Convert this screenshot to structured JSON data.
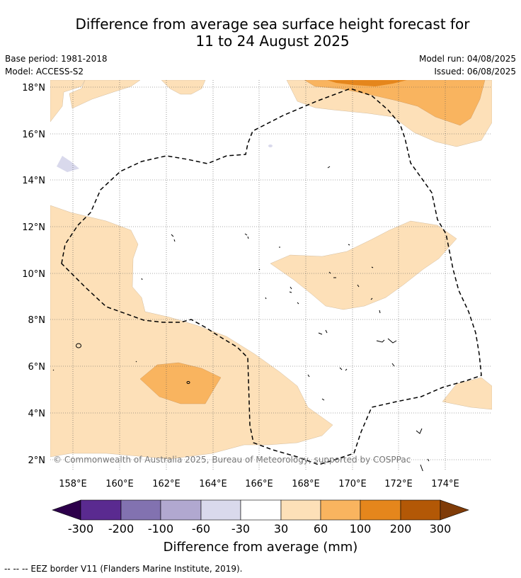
{
  "title": {
    "line1": "Difference from average sea surface height forecast for",
    "line2": "11 to 24 August 2025"
  },
  "meta_left": {
    "base_period": "Base period: 1981-2018",
    "model": "Model: ACCESS-S2"
  },
  "meta_right": {
    "model_run": "Model run: 04/08/2025",
    "issued": "Issued: 06/08/2025"
  },
  "map": {
    "lat_labels": [
      "18°N",
      "16°N",
      "14°N",
      "12°N",
      "10°N",
      "8°N",
      "6°N",
      "4°N",
      "2°N"
    ],
    "lon_labels": [
      "158°E",
      "160°E",
      "162°E",
      "164°E",
      "166°E",
      "168°E",
      "170°E",
      "172°E",
      "174°E"
    ],
    "copyright": "© Commonwealth of Australia 2025, Bureau of Meteorology, supported by COSPPac",
    "colors": {
      "anom_30_60": "#fde0b8",
      "anom_60_100": "#f9b45f",
      "anom_100_200": "#e5861c",
      "anom_neg_60_30": "#d9d9ec"
    }
  },
  "colorbar": {
    "tick_labels": [
      "-300",
      "-200",
      "-100",
      "-60",
      "-30",
      "30",
      "60",
      "100",
      "200",
      "300"
    ],
    "colors": [
      "#2d004b",
      "#5a2a90",
      "#8272b0",
      "#b1a8d0",
      "#d9d9ec",
      "#ffffff",
      "#fde0b8",
      "#f9b45f",
      "#e5861c",
      "#b35806",
      "#7f3b08"
    ],
    "label": "Difference from average (mm)"
  },
  "legend": {
    "eez_text": "-- -- -- EEZ border V11 (Flanders Marine Institute, 2019)."
  }
}
